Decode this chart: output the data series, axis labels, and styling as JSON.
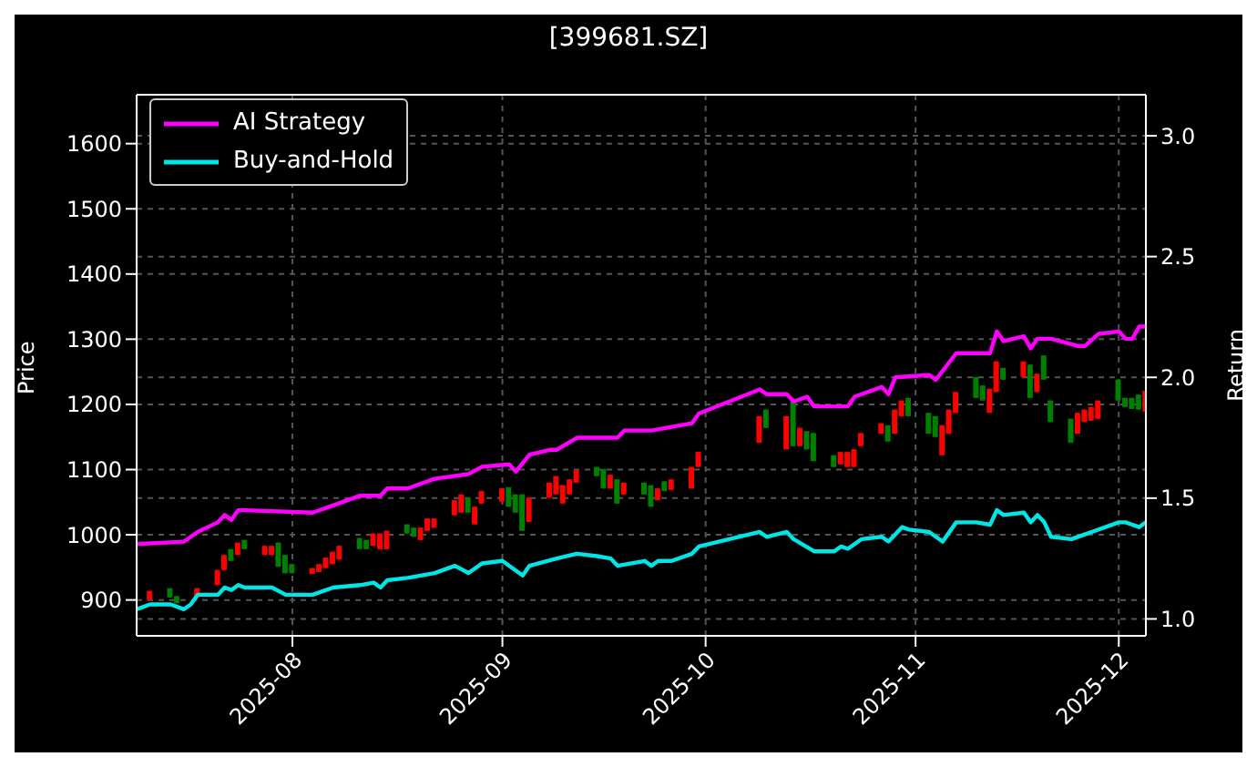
{
  "chart_data": {
    "type": "candlestick",
    "title": "[399681.SZ]",
    "ylabel": "Price",
    "y2label": "Return",
    "x": [
      "2025-07-11",
      "2025-07-14",
      "2025-07-15",
      "2025-07-18",
      "2025-07-21",
      "2025-07-22",
      "2025-07-23",
      "2025-07-24",
      "2025-07-25",
      "2025-07-28",
      "2025-07-29",
      "2025-07-30",
      "2025-07-31",
      "2025-08-01",
      "2025-08-04",
      "2025-08-05",
      "2025-08-06",
      "2025-08-07",
      "2025-08-08",
      "2025-08-11",
      "2025-08-12",
      "2025-08-13",
      "2025-08-14",
      "2025-08-15",
      "2025-08-18",
      "2025-08-19",
      "2025-08-20",
      "2025-08-21",
      "2025-08-22",
      "2025-08-25",
      "2025-08-26",
      "2025-08-27",
      "2025-08-28",
      "2025-08-29",
      "2025-09-01",
      "2025-09-02",
      "2025-09-03",
      "2025-09-04",
      "2025-09-05",
      "2025-09-08",
      "2025-09-09",
      "2025-09-10",
      "2025-09-11",
      "2025-09-12",
      "2025-09-15",
      "2025-09-16",
      "2025-09-17",
      "2025-09-18",
      "2025-09-19",
      "2025-09-22",
      "2025-09-23",
      "2025-09-24",
      "2025-09-25",
      "2025-09-26",
      "2025-09-29",
      "2025-09-30",
      "2025-10-09",
      "2025-10-10",
      "2025-10-13",
      "2025-10-14",
      "2025-10-15",
      "2025-10-16",
      "2025-10-17",
      "2025-10-20",
      "2025-10-21",
      "2025-10-22",
      "2025-10-23",
      "2025-10-24",
      "2025-10-27",
      "2025-10-28",
      "2025-10-29",
      "2025-10-30",
      "2025-10-31",
      "2025-11-03",
      "2025-11-04",
      "2025-11-05",
      "2025-11-06",
      "2025-11-07",
      "2025-11-10",
      "2025-11-11",
      "2025-11-12",
      "2025-11-13",
      "2025-11-14",
      "2025-11-17",
      "2025-11-18",
      "2025-11-19",
      "2025-11-20",
      "2025-11-21",
      "2025-11-24",
      "2025-11-25",
      "2025-11-26",
      "2025-11-27",
      "2025-11-28",
      "2025-12-01",
      "2025-12-02",
      "2025-12-03",
      "2025-12-04",
      "2025-12-05"
    ],
    "ohlc": [
      [
        900,
        914,
        900,
        914
      ],
      [
        918,
        918,
        904,
        904
      ],
      [
        906,
        906,
        895,
        895
      ],
      [
        904,
        918,
        904,
        918
      ],
      [
        923,
        946,
        923,
        946
      ],
      [
        946,
        969,
        946,
        969
      ],
      [
        978,
        978,
        960,
        960
      ],
      [
        969,
        988,
        969,
        988
      ],
      [
        992,
        992,
        978,
        978
      ],
      [
        969,
        983,
        969,
        983
      ],
      [
        969,
        983,
        969,
        983
      ],
      [
        988,
        988,
        951,
        951
      ],
      [
        969,
        969,
        941,
        941
      ],
      [
        955,
        955,
        941,
        941
      ],
      [
        940,
        949,
        940,
        949
      ],
      [
        943,
        955,
        943,
        955
      ],
      [
        949,
        965,
        949,
        965
      ],
      [
        955,
        974,
        955,
        974
      ],
      [
        962,
        983,
        962,
        983
      ],
      [
        995,
        995,
        978,
        978
      ],
      [
        992,
        992,
        978,
        978
      ],
      [
        983,
        1002,
        983,
        1002
      ],
      [
        978,
        1002,
        978,
        1002
      ],
      [
        978,
        1006,
        978,
        1006
      ],
      [
        1016,
        1016,
        1002,
        1002
      ],
      [
        1011,
        1011,
        997,
        997
      ],
      [
        992,
        1011,
        992,
        1011
      ],
      [
        1006,
        1025,
        1006,
        1025
      ],
      [
        1011,
        1025,
        1011,
        1025
      ],
      [
        1030,
        1053,
        1030,
        1053
      ],
      [
        1034,
        1062,
        1034,
        1062
      ],
      [
        1057,
        1057,
        1034,
        1034
      ],
      [
        1016,
        1043,
        1016,
        1043
      ],
      [
        1048,
        1067,
        1048,
        1067
      ],
      [
        1051,
        1071,
        1051,
        1071
      ],
      [
        1073,
        1073,
        1043,
        1043
      ],
      [
        1062,
        1062,
        1034,
        1034
      ],
      [
        1062,
        1062,
        1006,
        1006
      ],
      [
        1020,
        1057,
        1020,
        1057
      ],
      [
        1057,
        1080,
        1057,
        1080
      ],
      [
        1062,
        1090,
        1062,
        1090
      ],
      [
        1048,
        1076,
        1048,
        1076
      ],
      [
        1062,
        1085,
        1062,
        1085
      ],
      [
        1080,
        1099,
        1080,
        1099
      ],
      [
        1104,
        1104,
        1090,
        1090
      ],
      [
        1101,
        1101,
        1071,
        1071
      ],
      [
        1071,
        1092,
        1071,
        1092
      ],
      [
        1085,
        1085,
        1048,
        1048
      ],
      [
        1062,
        1080,
        1062,
        1080
      ],
      [
        1080,
        1080,
        1062,
        1062
      ],
      [
        1076,
        1076,
        1043,
        1043
      ],
      [
        1053,
        1071,
        1053,
        1071
      ],
      [
        1082,
        1082,
        1067,
        1067
      ],
      [
        1069,
        1085,
        1069,
        1085
      ],
      [
        1071,
        1104,
        1071,
        1104
      ],
      [
        1104,
        1127,
        1104,
        1127
      ],
      [
        1141,
        1182,
        1141,
        1182
      ],
      [
        1192,
        1192,
        1164,
        1164
      ],
      [
        1131,
        1182,
        1131,
        1182
      ],
      [
        1206,
        1206,
        1136,
        1136
      ],
      [
        1136,
        1164,
        1136,
        1164
      ],
      [
        1159,
        1159,
        1131,
        1131
      ],
      [
        1156,
        1156,
        1113,
        1113
      ],
      [
        1122,
        1122,
        1104,
        1104
      ],
      [
        1108,
        1127,
        1108,
        1127
      ],
      [
        1104,
        1127,
        1104,
        1127
      ],
      [
        1104,
        1131,
        1104,
        1131
      ],
      [
        1136,
        1156,
        1136,
        1156
      ],
      [
        1155,
        1171,
        1155,
        1171
      ],
      [
        1168,
        1168,
        1143,
        1143
      ],
      [
        1155,
        1192,
        1155,
        1192
      ],
      [
        1182,
        1206,
        1182,
        1206
      ],
      [
        1210,
        1210,
        1182,
        1182
      ],
      [
        1187,
        1187,
        1155,
        1155
      ],
      [
        1182,
        1182,
        1150,
        1150
      ],
      [
        1122,
        1168,
        1122,
        1168
      ],
      [
        1155,
        1192,
        1155,
        1192
      ],
      [
        1187,
        1219,
        1187,
        1219
      ],
      [
        1242,
        1242,
        1210,
        1210
      ],
      [
        1229,
        1229,
        1206,
        1206
      ],
      [
        1187,
        1224,
        1187,
        1224
      ],
      [
        1219,
        1266,
        1219,
        1266
      ],
      [
        1256,
        1256,
        1238,
        1238
      ],
      [
        1242,
        1266,
        1242,
        1266
      ],
      [
        1261,
        1261,
        1210,
        1210
      ],
      [
        1219,
        1247,
        1219,
        1247
      ],
      [
        1275,
        1275,
        1238,
        1238
      ],
      [
        1206,
        1206,
        1173,
        1173
      ],
      [
        1178,
        1178,
        1141,
        1141
      ],
      [
        1155,
        1187,
        1155,
        1187
      ],
      [
        1173,
        1192,
        1173,
        1192
      ],
      [
        1175,
        1196,
        1175,
        1196
      ],
      [
        1178,
        1206,
        1178,
        1206
      ],
      [
        1238,
        1238,
        1206,
        1206
      ],
      [
        1210,
        1210,
        1196,
        1196
      ],
      [
        1210,
        1210,
        1193,
        1193
      ],
      [
        1215,
        1215,
        1192,
        1192
      ],
      [
        1189,
        1221,
        1189,
        1221
      ]
    ],
    "colors": [
      "#ff0000",
      "#008000",
      "#008000",
      "#ff0000",
      "#ff0000",
      "#ff0000",
      "#008000",
      "#ff0000",
      "#008000",
      "#ff0000",
      "#ff0000",
      "#008000",
      "#008000",
      "#008000",
      "#ff0000",
      "#ff0000",
      "#ff0000",
      "#ff0000",
      "#ff0000",
      "#008000",
      "#008000",
      "#ff0000",
      "#ff0000",
      "#ff0000",
      "#008000",
      "#008000",
      "#ff0000",
      "#ff0000",
      "#ff0000",
      "#ff0000",
      "#ff0000",
      "#008000",
      "#ff0000",
      "#ff0000",
      "#ff0000",
      "#008000",
      "#008000",
      "#008000",
      "#ff0000",
      "#ff0000",
      "#ff0000",
      "#ff0000",
      "#ff0000",
      "#ff0000",
      "#008000",
      "#008000",
      "#ff0000",
      "#008000",
      "#ff0000",
      "#008000",
      "#008000",
      "#ff0000",
      "#008000",
      "#ff0000",
      "#ff0000",
      "#ff0000",
      "#ff0000",
      "#008000",
      "#ff0000",
      "#008000",
      "#ff0000",
      "#008000",
      "#008000",
      "#008000",
      "#ff0000",
      "#ff0000",
      "#ff0000",
      "#ff0000",
      "#ff0000",
      "#008000",
      "#ff0000",
      "#ff0000",
      "#008000",
      "#008000",
      "#008000",
      "#ff0000",
      "#ff0000",
      "#ff0000",
      "#008000",
      "#008000",
      "#ff0000",
      "#ff0000",
      "#008000",
      "#ff0000",
      "#008000",
      "#ff0000",
      "#008000",
      "#008000",
      "#008000",
      "#ff0000",
      "#ff0000",
      "#ff0000",
      "#ff0000",
      "#008000",
      "#008000",
      "#008000",
      "#008000",
      "#ff0000"
    ],
    "series": [
      {
        "name": "AI Strategy",
        "type": "line",
        "axis": "y2",
        "color": "#ff00ff",
        "x": [
          "2025-07-09",
          "2025-07-16",
          "2025-07-18",
          "2025-07-21",
          "2025-07-22",
          "2025-07-23",
          "2025-07-24",
          "2025-07-25",
          "2025-08-04",
          "2025-08-07",
          "2025-08-11",
          "2025-08-14",
          "2025-08-15",
          "2025-08-18",
          "2025-08-22",
          "2025-08-27",
          "2025-08-29",
          "2025-09-02",
          "2025-09-03",
          "2025-09-05",
          "2025-09-08",
          "2025-09-09",
          "2025-09-12",
          "2025-09-18",
          "2025-09-19",
          "2025-09-23",
          "2025-09-29",
          "2025-09-30",
          "2025-10-09",
          "2025-10-10",
          "2025-10-13",
          "2025-10-14",
          "2025-10-16",
          "2025-10-17",
          "2025-10-22",
          "2025-10-23",
          "2025-10-27",
          "2025-10-28",
          "2025-10-29",
          "2025-11-03",
          "2025-11-04",
          "2025-11-07",
          "2025-11-12",
          "2025-11-13",
          "2025-11-14",
          "2025-11-17",
          "2025-11-18",
          "2025-11-19",
          "2025-11-21",
          "2025-11-25",
          "2025-11-26",
          "2025-11-28",
          "2025-12-01",
          "2025-12-02",
          "2025-12-03",
          "2025-12-04",
          "2025-12-05"
        ],
        "values": [
          1.31,
          1.32,
          1.36,
          1.4,
          1.43,
          1.41,
          1.45,
          1.45,
          1.44,
          1.47,
          1.51,
          1.51,
          1.54,
          1.54,
          1.58,
          1.6,
          1.63,
          1.64,
          1.61,
          1.68,
          1.7,
          1.7,
          1.75,
          1.75,
          1.78,
          1.78,
          1.81,
          1.85,
          1.95,
          1.93,
          1.93,
          1.9,
          1.92,
          1.88,
          1.88,
          1.92,
          1.96,
          1.93,
          2.0,
          2.01,
          1.99,
          2.1,
          2.1,
          2.19,
          2.15,
          2.17,
          2.12,
          2.16,
          2.16,
          2.13,
          2.13,
          2.18,
          2.19,
          2.16,
          2.16,
          2.21,
          2.21
        ]
      },
      {
        "name": "Buy-and-Hold",
        "type": "line",
        "axis": "y2",
        "color": "#00e5e5",
        "x": [
          "2025-07-09",
          "2025-07-11",
          "2025-07-14",
          "2025-07-16",
          "2025-07-17",
          "2025-07-18",
          "2025-07-21",
          "2025-07-22",
          "2025-07-23",
          "2025-07-24",
          "2025-07-25",
          "2025-07-29",
          "2025-07-31",
          "2025-08-04",
          "2025-08-07",
          "2025-08-11",
          "2025-08-13",
          "2025-08-14",
          "2025-08-15",
          "2025-08-18",
          "2025-08-22",
          "2025-08-25",
          "2025-08-27",
          "2025-08-29",
          "2025-09-01",
          "2025-09-04",
          "2025-09-05",
          "2025-09-09",
          "2025-09-12",
          "2025-09-15",
          "2025-09-17",
          "2025-09-18",
          "2025-09-22",
          "2025-09-23",
          "2025-09-24",
          "2025-09-26",
          "2025-09-29",
          "2025-09-30",
          "2025-10-09",
          "2025-10-10",
          "2025-10-13",
          "2025-10-14",
          "2025-10-17",
          "2025-10-20",
          "2025-10-21",
          "2025-10-22",
          "2025-10-24",
          "2025-10-27",
          "2025-10-28",
          "2025-10-30",
          "2025-10-31",
          "2025-11-03",
          "2025-11-05",
          "2025-11-07",
          "2025-11-10",
          "2025-11-12",
          "2025-11-13",
          "2025-11-14",
          "2025-11-17",
          "2025-11-18",
          "2025-11-19",
          "2025-11-20",
          "2025-11-21",
          "2025-11-24",
          "2025-11-26",
          "2025-11-27",
          "2025-12-01",
          "2025-12-02",
          "2025-12-03",
          "2025-12-04",
          "2025-12-05"
        ],
        "values": [
          1.04,
          1.06,
          1.06,
          1.04,
          1.06,
          1.1,
          1.1,
          1.13,
          1.12,
          1.14,
          1.13,
          1.13,
          1.1,
          1.1,
          1.13,
          1.14,
          1.15,
          1.13,
          1.16,
          1.17,
          1.19,
          1.22,
          1.19,
          1.23,
          1.24,
          1.18,
          1.22,
          1.25,
          1.27,
          1.26,
          1.25,
          1.22,
          1.24,
          1.22,
          1.24,
          1.24,
          1.27,
          1.3,
          1.36,
          1.34,
          1.36,
          1.33,
          1.28,
          1.28,
          1.3,
          1.29,
          1.33,
          1.34,
          1.32,
          1.38,
          1.37,
          1.36,
          1.32,
          1.4,
          1.4,
          1.39,
          1.45,
          1.43,
          1.44,
          1.4,
          1.43,
          1.4,
          1.34,
          1.33,
          1.35,
          1.36,
          1.4,
          1.4,
          1.39,
          1.38,
          1.4
        ]
      }
    ],
    "xlim": [
      "2025-07-09",
      "2025-12-05"
    ],
    "xticks": [
      {
        "value": "2025-08-01",
        "label": "2025-08"
      },
      {
        "value": "2025-09-01",
        "label": "2025-09"
      },
      {
        "value": "2025-10-01",
        "label": "2025-10"
      },
      {
        "value": "2025-11-01",
        "label": "2025-11"
      },
      {
        "value": "2025-12-01",
        "label": "2025-12"
      }
    ],
    "ylim": [
      845,
      1675
    ],
    "yticks": [
      900,
      1000,
      1100,
      1200,
      1300,
      1400,
      1500,
      1600
    ],
    "y2lim": [
      0.93,
      3.17
    ],
    "y2ticks": [
      {
        "value": 1,
        "label": "1.0"
      },
      {
        "value": 1.5,
        "label": "1.5"
      },
      {
        "value": 2,
        "label": "2.0"
      },
      {
        "value": 2.5,
        "label": "2.5"
      },
      {
        "value": 3,
        "label": "3.0"
      }
    ],
    "grid": true,
    "legend": "top left"
  }
}
